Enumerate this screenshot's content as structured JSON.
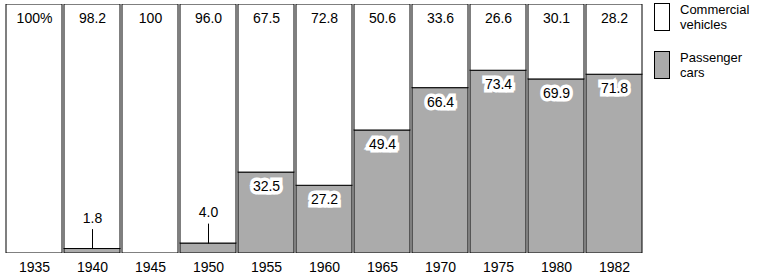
{
  "chart_data": {
    "type": "bar",
    "stacked": true,
    "data_labels": true,
    "tick_labels": "x",
    "legend": "right",
    "categories": [
      "1935",
      "1940",
      "1945",
      "1950",
      "1955",
      "1960",
      "1965",
      "1970",
      "1975",
      "1980",
      "1982"
    ],
    "ylim": [
      0,
      100
    ],
    "series": [
      {
        "name": "Commercial vehicles",
        "color": "#ffffff",
        "values": [
          100,
          98.2,
          100,
          96.0,
          67.5,
          72.8,
          50.6,
          33.6,
          26.6,
          30.1,
          28.2
        ],
        "value_labels": [
          "100%",
          "98.2",
          "100",
          "96.0",
          "67.5",
          "72.8",
          "50.6",
          "33.6",
          "26.6",
          "30.1",
          "28.2"
        ]
      },
      {
        "name": "Passenger cars",
        "color": "#ababab",
        "values": [
          0,
          1.8,
          0,
          4.0,
          32.5,
          27.2,
          49.4,
          66.4,
          73.4,
          69.9,
          71.8
        ],
        "value_labels": [
          null,
          "1.8",
          null,
          "4.0",
          "32.5",
          "27.2",
          "49.4",
          "66.4",
          "73.4",
          "69.9",
          "71.8"
        ]
      }
    ]
  }
}
